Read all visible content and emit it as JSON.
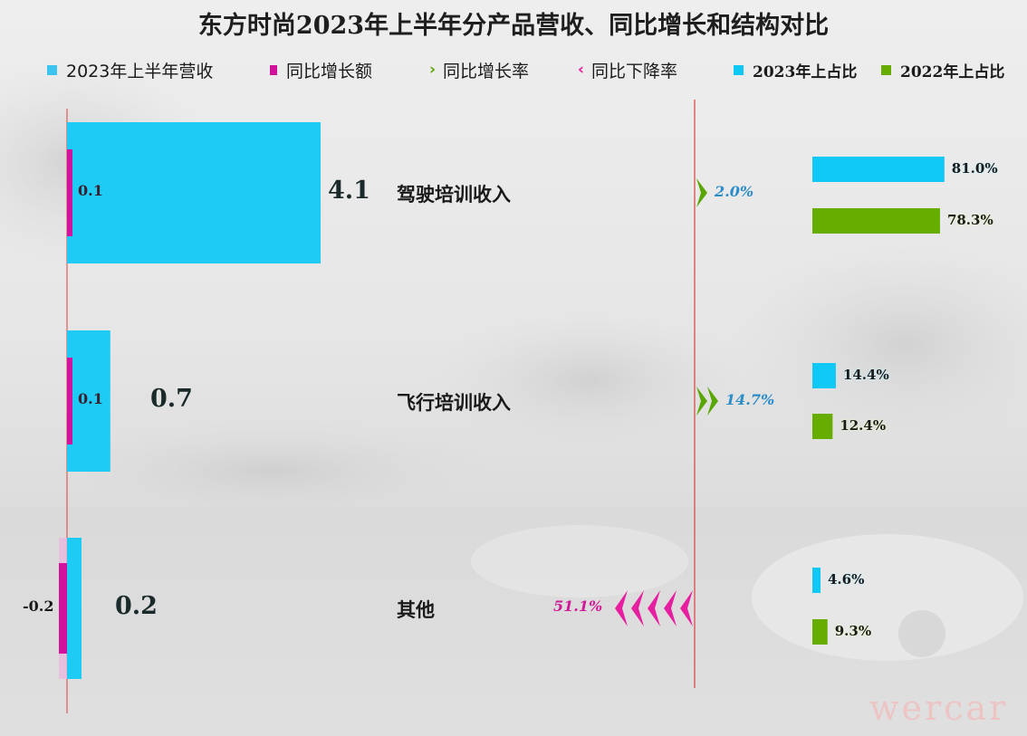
{
  "title": "东方时尚2023年上半年分产品营收、同比增长和结构对比",
  "watermark": "wercar",
  "colors": {
    "revenue": "#1ecbf5",
    "increase": "#d0129c",
    "growth": "#5aa600",
    "decline": "#e61ea0",
    "share2023": "#10c8f5",
    "share2022": "#66ad00",
    "axis": "#d94040"
  },
  "legend": [
    {
      "label": "2023年上半年营收",
      "marker": "square",
      "color": "#3bc4ee"
    },
    {
      "label": "同比增长额",
      "marker": "square",
      "color": "#d0129c"
    },
    {
      "label": "同比增长率",
      "marker": "chevron-right",
      "color": "#5aa600"
    },
    {
      "label": "同比下降率",
      "marker": "chevron-left",
      "color": "#e61ea0"
    },
    {
      "label": "2023年上占比",
      "marker": "square",
      "color": "#10c8f5"
    },
    {
      "label": "2022年上占比",
      "marker": "square",
      "color": "#66ad00"
    }
  ],
  "chart_data": {
    "type": "bar",
    "title": "东方时尚2023年上半年分产品营收、同比增长和结构对比",
    "categories": [
      "驾驶培训收入",
      "飞行培训收入",
      "其他"
    ],
    "series": [
      {
        "name": "2023年上半年营收",
        "values": [
          4.1,
          0.7,
          0.2
        ],
        "labels": [
          "4.1",
          "0.7",
          "0.2"
        ]
      },
      {
        "name": "同比增长额",
        "values": [
          0.1,
          0.1,
          -0.2
        ],
        "labels": [
          "0.1",
          "0.1",
          "-0.2"
        ]
      },
      {
        "name": "同比增长率",
        "values": [
          2.0,
          14.7,
          null
        ],
        "labels": [
          "2.0%",
          "14.7%",
          ""
        ]
      },
      {
        "name": "同比下降率",
        "values": [
          null,
          null,
          51.1
        ],
        "labels": [
          "",
          "",
          "51.1%"
        ]
      },
      {
        "name": "2023年上占比",
        "values": [
          81.0,
          14.4,
          4.6
        ],
        "labels": [
          "81.0%",
          "14.4%",
          "4.6%"
        ]
      },
      {
        "name": "2022年上占比",
        "values": [
          78.3,
          12.4,
          9.3
        ],
        "labels": [
          "78.3%",
          "12.4%",
          "9.3%"
        ]
      }
    ],
    "legend_position": "top",
    "grid": false
  }
}
